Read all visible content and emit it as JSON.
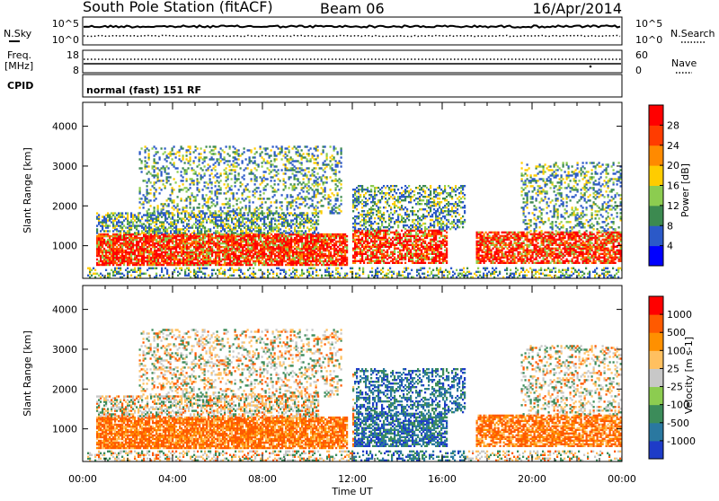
{
  "header": {
    "station": "South Pole Station (fitACF)",
    "beam": "Beam 06",
    "date": "16/Apr/2014"
  },
  "noise_panel": {
    "left_label": "N.Sky",
    "right_label": "N.Search",
    "left_ticks": [
      "10^5",
      "10^0"
    ],
    "right_ticks": [
      "10^5",
      "10^0"
    ]
  },
  "freq_panel": {
    "left_label_line1": "Freq.",
    "left_label_line2": "[MHz]",
    "left_ticks": [
      "18",
      "8"
    ],
    "right_ticks": [
      "60",
      "0"
    ],
    "right_label": "Nave"
  },
  "cpid_panel": {
    "label": "CPID",
    "mode_text": "normal (fast) 151 RF"
  },
  "chart_data": [
    {
      "type": "heatmap",
      "name": "power",
      "ylabel": "Slant Range [km]",
      "xlabel": "",
      "ylim": [
        180,
        4600
      ],
      "yticks": [
        1000,
        2000,
        3000,
        4000
      ],
      "colorbar_label": "Power [dB]",
      "colorbar_ticks": [
        "4",
        "8",
        "12",
        "16",
        "20",
        "24",
        "28"
      ],
      "colorbar_colors": [
        "#0000ff",
        "#2b59c8",
        "#3c8a50",
        "#8ccc50",
        "#ffcc00",
        "#ff8a00",
        "#ff3c00",
        "#ff0000"
      ],
      "xlim_hours": [
        0,
        24
      ]
    },
    {
      "type": "heatmap",
      "name": "velocity",
      "ylabel": "Slant Range [km]",
      "xlabel": "Time UT",
      "ylim": [
        180,
        4600
      ],
      "yticks": [
        1000,
        2000,
        3000,
        4000
      ],
      "colorbar_label": "Velocity [m s-1]",
      "colorbar_ticks": [
        "1000",
        "500",
        "100",
        "25",
        "-25",
        "-100",
        "-500",
        "-1000"
      ],
      "colorbar_colors": [
        "#1e3cc8",
        "#2a78a0",
        "#3c8c5a",
        "#8ccc50",
        "#c8c8c8",
        "#ffc060",
        "#ff9000",
        "#ff5a00",
        "#ff0000"
      ],
      "xticks": [
        "00:00",
        "04:00",
        "08:00",
        "12:00",
        "16:00",
        "20:00",
        "00:00"
      ],
      "xlim_hours": [
        0,
        24
      ]
    }
  ]
}
